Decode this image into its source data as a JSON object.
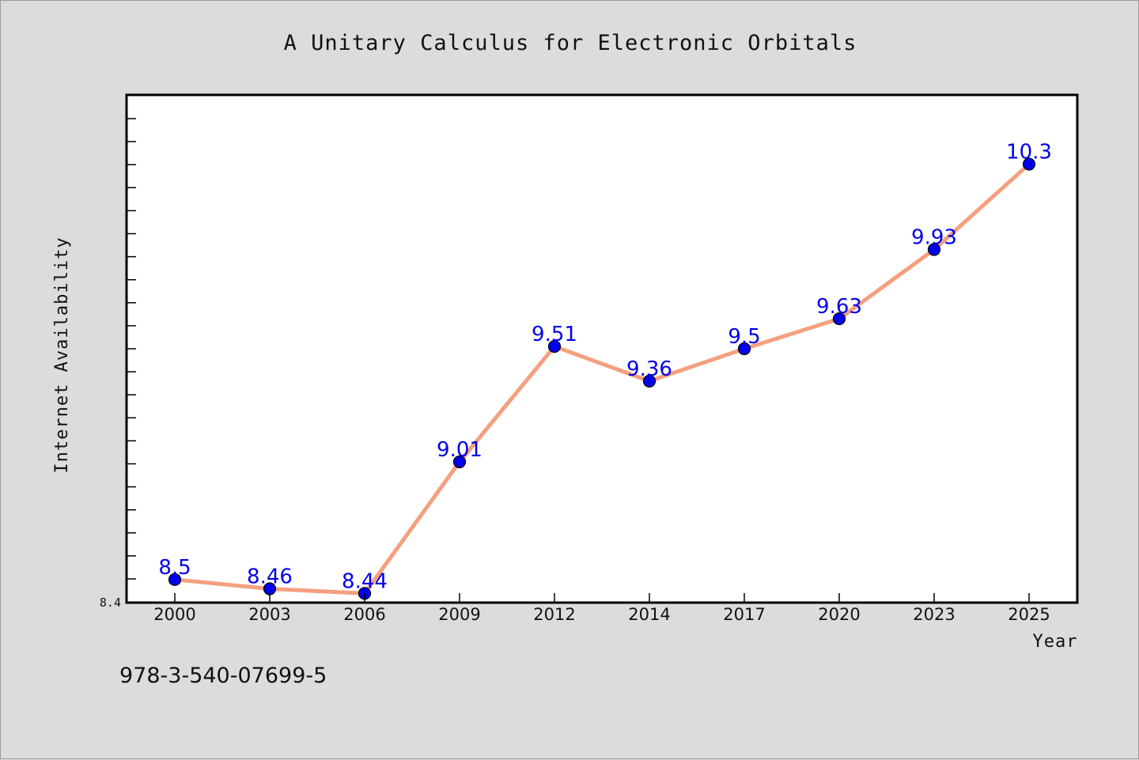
{
  "chart_data": {
    "type": "line",
    "title": "A Unitary Calculus for Electronic Orbitals",
    "xlabel": "Year",
    "ylabel": "Internet Availability",
    "categories": [
      "2000",
      "2003",
      "2006",
      "2009",
      "2012",
      "2014",
      "2017",
      "2020",
      "2023",
      "2025"
    ],
    "series": [
      {
        "values": [
          8.5,
          8.46,
          8.44,
          9.01,
          9.51,
          9.36,
          9.5,
          9.63,
          9.93,
          10.3
        ],
        "labels": [
          "8.5",
          "8.46",
          "8.44",
          "9.01",
          "9.51",
          "9.36",
          "9.5",
          "9.63",
          "9.93",
          "10.3"
        ],
        "line_color": "#f4a07f",
        "marker_color": "#0000ee",
        "label_color": "#0000ee"
      }
    ],
    "yticks": [
      "8.4"
    ],
    "ylim": [
      8.4,
      10.6
    ],
    "grid": false,
    "legend": "none",
    "plot_background": "#ffffff",
    "figure_background": "#dcdcdc"
  },
  "footer": {
    "isbn": "978-3-540-07699-5"
  }
}
